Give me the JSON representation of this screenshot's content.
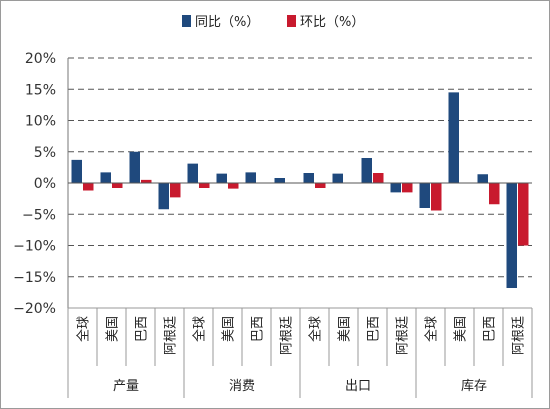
{
  "chart_data": {
    "type": "bar",
    "ylim": [
      -20,
      20
    ],
    "y_ticks": [
      20,
      15,
      10,
      5,
      0,
      -5,
      -10,
      -15,
      -20
    ],
    "y_tick_labels": [
      "20%",
      "15%",
      "10%",
      "5%",
      "0%",
      "−5%",
      "−10%",
      "−15%",
      "−20%"
    ],
    "grid": "horizontal dashed",
    "legend_position": "top",
    "groups": [
      {
        "name": "产量",
        "categories": [
          "全球",
          "美国",
          "巴西",
          "阿根廷"
        ]
      },
      {
        "name": "消费",
        "categories": [
          "全球",
          "美国",
          "巴西",
          "阿根廷"
        ]
      },
      {
        "name": "出口",
        "categories": [
          "全球",
          "美国",
          "巴西",
          "阿根廷"
        ]
      },
      {
        "name": "库存",
        "categories": [
          "全球",
          "美国",
          "巴西",
          "阿根廷"
        ]
      }
    ],
    "series": [
      {
        "name": "同比（%）",
        "color": "#1f497d",
        "values": [
          3.7,
          1.7,
          5.0,
          -4.2,
          3.1,
          1.5,
          1.7,
          0.8,
          1.6,
          1.5,
          4.0,
          -1.5,
          -4.0,
          14.5,
          1.4,
          -16.8
        ]
      },
      {
        "name": "环比（%）",
        "color": "#c81a2e",
        "values": [
          -1.2,
          -0.8,
          0.5,
          -2.3,
          -0.8,
          -0.9,
          0.0,
          0.0,
          -0.8,
          0.0,
          1.6,
          -1.5,
          -4.4,
          0.0,
          -3.4,
          -10.0
        ]
      }
    ]
  }
}
